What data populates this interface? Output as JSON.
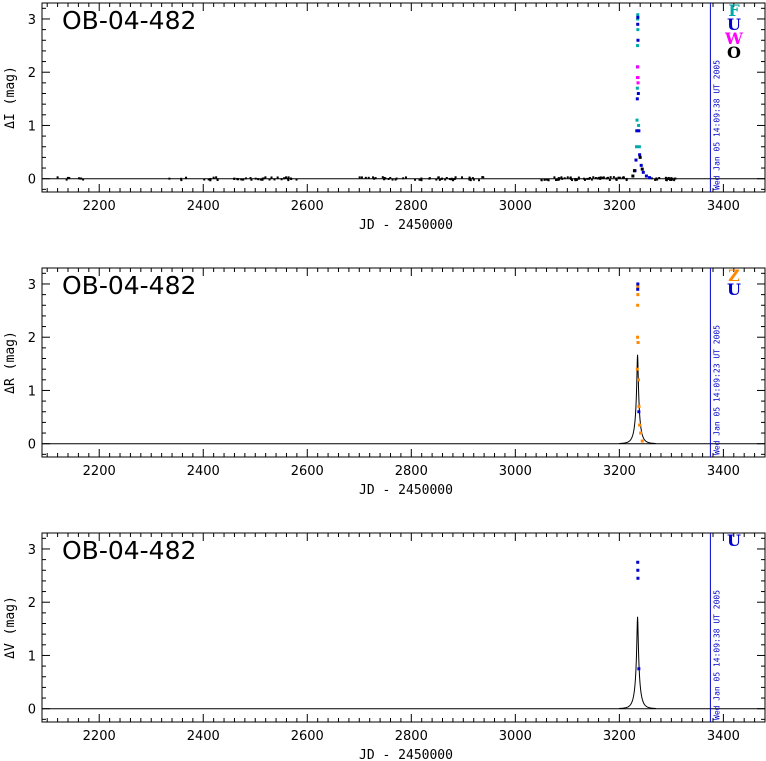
{
  "chart_data": [
    {
      "type": "scatter",
      "title": "OB-04-482",
      "xlabel": "JD - 2450000",
      "ylabel": "ΔI (mag)",
      "xlim": [
        2090,
        3480
      ],
      "ylim": [
        -0.25,
        3.3
      ],
      "xticks": [
        "2200",
        "2400",
        "2600",
        "2800",
        "3000",
        "3200",
        "3400"
      ],
      "yticks": [
        "0",
        "1",
        "2",
        "3"
      ],
      "date_line_x": 3375,
      "date_text": "Wed Jan 05 14:09:38 UT 2005",
      "legend": [
        {
          "label": "F",
          "color": "#00aaaa"
        },
        {
          "label": "U",
          "color": "#0000cc"
        },
        {
          "label": "W",
          "color": "#ff00ff"
        },
        {
          "label": "O",
          "color": "#000000"
        }
      ],
      "model": {
        "t0": 3235,
        "u0": 0.11,
        "tE": 9.5,
        "fs": 0.53
      },
      "baseline_segments": [
        {
          "start": 2120,
          "end": 2180,
          "n": 8,
          "color": "#000000"
        },
        {
          "start": 2330,
          "end": 2370,
          "n": 5,
          "color": "#000000"
        },
        {
          "start": 2400,
          "end": 2580,
          "n": 40,
          "color": "#000000"
        },
        {
          "start": 2700,
          "end": 2940,
          "n": 50,
          "color": "#000000"
        },
        {
          "start": 3050,
          "end": 3215,
          "n": 60,
          "color": "#000000"
        },
        {
          "start": 3260,
          "end": 3310,
          "n": 20,
          "color": "#000000"
        }
      ],
      "series": [
        {
          "name": "F",
          "color": "#00aaaa",
          "points": [
            [
              3233.0,
              0.6
            ],
            [
              3234.0,
              1.1
            ],
            [
              3234.6,
              1.7
            ],
            [
              3235.0,
              2.5
            ],
            [
              3235.2,
              3.0
            ],
            [
              3235.4,
              3.08
            ],
            [
              3235.6,
              2.8
            ],
            [
              3236.0,
              1.9
            ],
            [
              3237.0,
              1.0
            ],
            [
              3238.5,
              0.6
            ]
          ]
        },
        {
          "name": "U",
          "color": "#0000cc",
          "points": [
            [
              3230.0,
              0.15
            ],
            [
              3232.0,
              0.35
            ],
            [
              3233.5,
              0.9
            ],
            [
              3234.5,
              1.5
            ],
            [
              3235.0,
              2.1
            ],
            [
              3235.3,
              2.9
            ],
            [
              3235.5,
              3.03
            ],
            [
              3235.8,
              2.6
            ],
            [
              3236.5,
              1.6
            ],
            [
              3237.5,
              0.9
            ],
            [
              3239.0,
              0.45
            ],
            [
              3242.0,
              0.25
            ],
            [
              3246.0,
              0.12
            ],
            [
              3252.0,
              0.05
            ],
            [
              3258.0,
              0.02
            ]
          ]
        },
        {
          "name": "W",
          "color": "#ff00ff",
          "points": [
            [
              3234.8,
              1.9
            ],
            [
              3235.2,
              2.1
            ],
            [
              3235.9,
              1.8
            ]
          ]
        },
        {
          "name": "O",
          "color": "#000000",
          "points": [
            [
              3226.0,
              0.05
            ],
            [
              3229.0,
              0.15
            ],
            [
              3240.0,
              0.4
            ],
            [
              3244.0,
              0.18
            ]
          ]
        }
      ]
    },
    {
      "type": "scatter",
      "title": "OB-04-482",
      "xlabel": "JD - 2450000",
      "ylabel": "ΔR (mag)",
      "xlim": [
        2090,
        3480
      ],
      "ylim": [
        -0.25,
        3.3
      ],
      "xticks": [
        "2200",
        "2400",
        "2600",
        "2800",
        "3000",
        "3200",
        "3400"
      ],
      "yticks": [
        "0",
        "1",
        "2",
        "3"
      ],
      "date_line_x": 3375,
      "date_text": "Wed Jan 05 14:09:23 UT 2005",
      "legend": [
        {
          "label": "Z",
          "color": "#ff8800"
        },
        {
          "label": "U",
          "color": "#0000cc"
        }
      ],
      "model": {
        "t0": 3235,
        "u0": 0.11,
        "tE": 9.5,
        "fs": 0.45
      },
      "baseline_segments": [],
      "series": [
        {
          "name": "Z",
          "color": "#ff8800",
          "points": [
            [
              3234.5,
              1.4
            ],
            [
              3235.0,
              2.0
            ],
            [
              3235.2,
              2.6
            ],
            [
              3235.4,
              2.95
            ],
            [
              3235.6,
              2.8
            ],
            [
              3236.0,
              1.9
            ],
            [
              3236.8,
              1.2
            ],
            [
              3237.8,
              0.7
            ],
            [
              3239.0,
              0.35
            ],
            [
              3241.0,
              0.2
            ],
            [
              3244.0,
              0.05
            ]
          ]
        },
        {
          "name": "U",
          "color": "#0000cc",
          "points": [
            [
              3235.3,
              2.9
            ],
            [
              3235.5,
              3.0
            ],
            [
              3237.5,
              0.6
            ]
          ]
        }
      ]
    },
    {
      "type": "scatter",
      "title": "OB-04-482",
      "xlabel": "JD - 2450000",
      "ylabel": "ΔV (mag)",
      "xlim": [
        2090,
        3480
      ],
      "ylim": [
        -0.25,
        3.3
      ],
      "xticks": [
        "2200",
        "2400",
        "2600",
        "2800",
        "3000",
        "3200",
        "3400"
      ],
      "yticks": [
        "0",
        "1",
        "2",
        "3"
      ],
      "date_line_x": 3375,
      "date_text": "Wed Jan 05 14:09:38 UT 2005",
      "legend": [
        {
          "label": "U",
          "color": "#0000cc"
        }
      ],
      "model": {
        "t0": 3235,
        "u0": 0.11,
        "tE": 9.5,
        "fs": 0.48
      },
      "baseline_segments": [],
      "series": [
        {
          "name": "U",
          "color": "#0000cc",
          "points": [
            [
              3235.3,
              2.75
            ],
            [
              3235.5,
              2.6
            ],
            [
              3235.7,
              2.45
            ],
            [
              3237.5,
              0.75
            ]
          ]
        }
      ]
    }
  ]
}
